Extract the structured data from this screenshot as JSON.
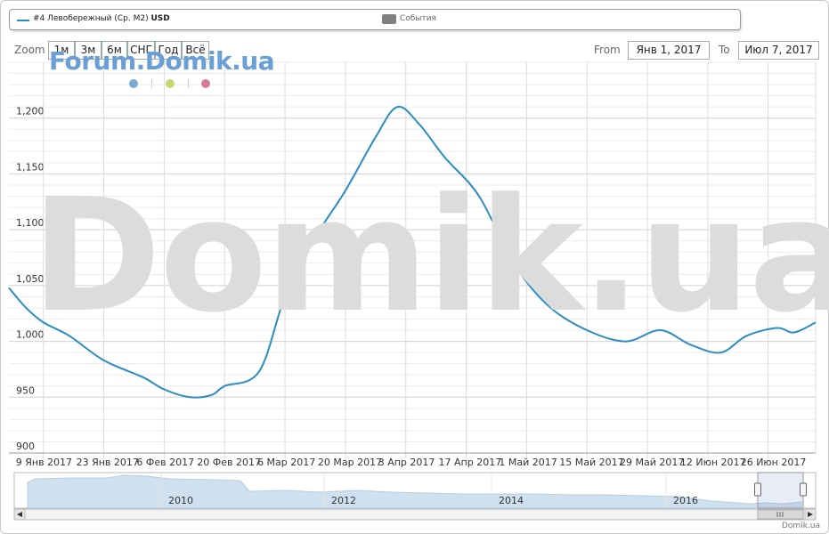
{
  "legend": {
    "series_label": "#4 Левобережный (Ср. М2)",
    "series_unit": "USD",
    "events_label": "События"
  },
  "toolbar": {
    "zoom_label": "Zoom",
    "buttons": [
      "1м",
      "3м",
      "6м",
      "СНГ",
      "Год",
      "Всё"
    ],
    "from_label": "From",
    "from_value": "Янв 1, 2017",
    "to_label": "To",
    "to_value": "Июл 7, 2017"
  },
  "watermarks": {
    "forum": "Forum.Domik.ua",
    "main": "Domik.ua"
  },
  "indicator_dots": [
    "#7aaad6",
    "#c8d66e",
    "#d67a94"
  ],
  "credit": "Domik.ua",
  "colors": {
    "series": "#2b8cc4",
    "grid": "#e0e0e0",
    "navigator_fill": "#cfe0ee"
  },
  "chart_data": {
    "type": "line",
    "ylim": [
      900,
      1250
    ],
    "yticks": [
      900,
      950,
      "1,000",
      "1,050",
      "1,100",
      "1,150",
      "1,200"
    ],
    "ytick_values": [
      900,
      950,
      1000,
      1050,
      1100,
      1150,
      1200
    ],
    "x_tick_labels": [
      "9 Янв 2017",
      "23 Янв 2017",
      "6 Фев 2017",
      "20 Фев 2017",
      "6 Мар 2017",
      "20 Мар 2017",
      "3 Апр 2017",
      "17 Апр 2017",
      "1 Май 2017",
      "15 Май 2017",
      "29 Май 2017",
      "12 Июн 2017",
      "26 Июн 2017"
    ],
    "x_tick_dates": [
      "2017-01-09",
      "2017-01-23",
      "2017-02-06",
      "2017-02-20",
      "2017-03-06",
      "2017-03-20",
      "2017-04-03",
      "2017-04-17",
      "2017-05-01",
      "2017-05-15",
      "2017-05-29",
      "2017-06-12",
      "2017-06-26"
    ],
    "x_range": [
      "2017-01-01",
      "2017-07-07"
    ],
    "series": [
      {
        "name": "#4 Левобережный (Ср. М2)",
        "points": [
          [
            "2017-01-01",
            1048
          ],
          [
            "2017-01-05",
            1030
          ],
          [
            "2017-01-09",
            1017
          ],
          [
            "2017-01-15",
            1005
          ],
          [
            "2017-01-23",
            983
          ],
          [
            "2017-02-01",
            968
          ],
          [
            "2017-02-06",
            957
          ],
          [
            "2017-02-12",
            950
          ],
          [
            "2017-02-17",
            952
          ],
          [
            "2017-02-20",
            960
          ],
          [
            "2017-02-28",
            973
          ],
          [
            "2017-03-06",
            1040
          ],
          [
            "2017-03-13",
            1093
          ],
          [
            "2017-03-20",
            1135
          ],
          [
            "2017-03-27",
            1183
          ],
          [
            "2017-04-01",
            1210
          ],
          [
            "2017-04-06",
            1195
          ],
          [
            "2017-04-12",
            1165
          ],
          [
            "2017-04-20",
            1130
          ],
          [
            "2017-04-28",
            1070
          ],
          [
            "2017-05-06",
            1032
          ],
          [
            "2017-05-15",
            1010
          ],
          [
            "2017-05-24",
            1000
          ],
          [
            "2017-06-01",
            1010
          ],
          [
            "2017-06-08",
            997
          ],
          [
            "2017-06-15",
            990
          ],
          [
            "2017-06-21",
            1005
          ],
          [
            "2017-06-28",
            1012
          ],
          [
            "2017-07-02",
            1008
          ],
          [
            "2017-07-07",
            1017
          ]
        ]
      }
    ],
    "navigator": {
      "year_labels": [
        "2010",
        "2012",
        "2014",
        "2016"
      ]
    }
  }
}
